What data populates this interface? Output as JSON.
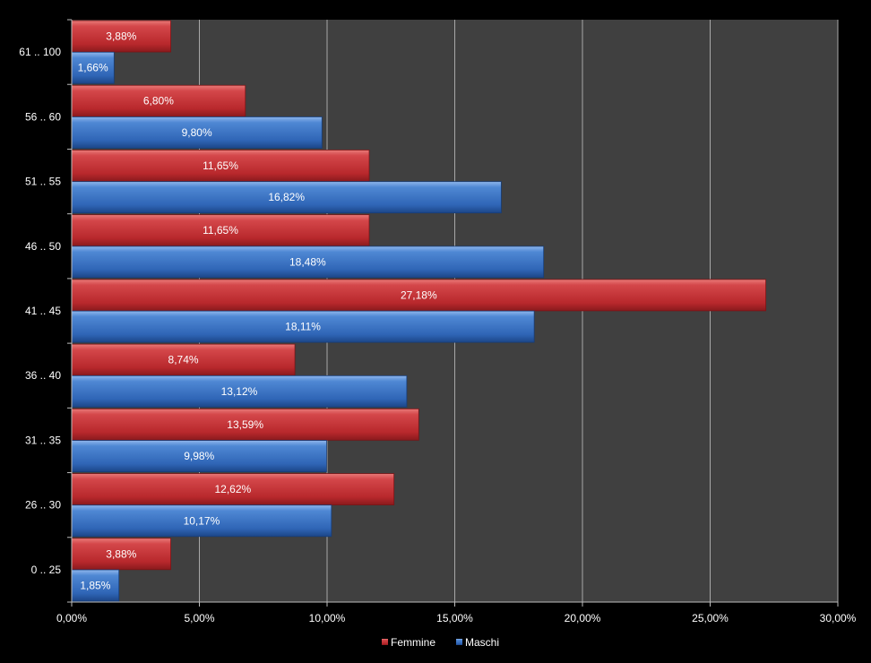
{
  "chart_data": {
    "type": "bar",
    "orientation": "horizontal",
    "categories": [
      "0 .. 25",
      "26 .. 30",
      "31 .. 35",
      "36 .. 40",
      "41 .. 45",
      "46 .. 50",
      "51 .. 55",
      "56 .. 60",
      "61 .. 100"
    ],
    "series": [
      {
        "name": "Femmine",
        "color": "#c0393b",
        "values": [
          3.88,
          12.62,
          13.59,
          8.74,
          27.18,
          11.65,
          11.65,
          6.8,
          3.88
        ],
        "labels": [
          "3,88%",
          "12,62%",
          "13,59%",
          "8,74%",
          "27,18%",
          "11,65%",
          "11,65%",
          "6,80%",
          "3,88%"
        ]
      },
      {
        "name": "Maschi",
        "color": "#3a76c4",
        "values": [
          1.85,
          10.17,
          9.98,
          13.12,
          18.11,
          18.48,
          16.82,
          9.8,
          1.66
        ],
        "labels": [
          "1,85%",
          "10,17%",
          "9,98%",
          "13,12%",
          "18,11%",
          "18,48%",
          "16,82%",
          "9,80%",
          "1,66%"
        ]
      }
    ],
    "xlim": [
      0,
      30
    ],
    "x_ticks": [
      0,
      5,
      10,
      15,
      20,
      25,
      30
    ],
    "x_tick_labels": [
      "0,00%",
      "5,00%",
      "10,00%",
      "15,00%",
      "20,00%",
      "25,00%",
      "30,00%"
    ],
    "grid": true,
    "legend_position": "bottom",
    "title": "",
    "xlabel": "",
    "ylabel": ""
  }
}
